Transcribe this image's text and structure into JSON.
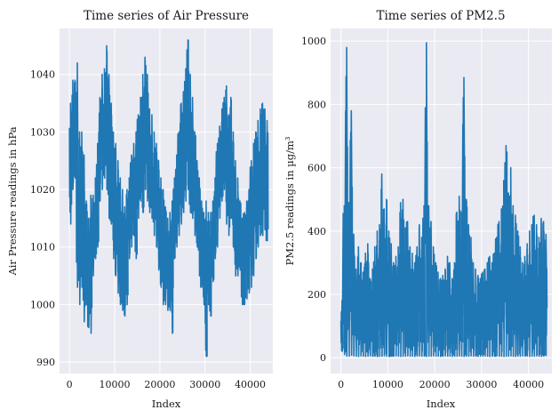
{
  "chart_data": [
    {
      "type": "line",
      "title": "Time series of Air Pressure",
      "xlabel": "Index",
      "ylabel": "Air Pressure readings in hPa",
      "xlim": [
        -2200,
        45000
      ],
      "ylim": [
        988,
        1048
      ],
      "xticks": [
        0,
        10000,
        20000,
        30000,
        40000
      ],
      "xtick_labels": [
        "0",
        "10000",
        "20000",
        "30000",
        "40000"
      ],
      "yticks": [
        990,
        1000,
        1010,
        1020,
        1030,
        1040
      ],
      "ytick_labels": [
        "990",
        "1000",
        "1010",
        "1020",
        "1030",
        "1040"
      ],
      "grid": true,
      "series": [
        {
          "color": "#1f77b4",
          "x": [
            0,
            500,
            1000,
            1500,
            2000,
            2500,
            3000,
            3500,
            4000,
            4500,
            5000,
            5500,
            6000,
            6500,
            7000,
            7500,
            8000,
            8500,
            9000,
            9500,
            10000,
            10500,
            11000,
            11500,
            12000,
            12500,
            13000,
            13500,
            14000,
            14500,
            15000,
            15500,
            16000,
            16500,
            17000,
            17500,
            18000,
            18500,
            19000,
            19500,
            20000,
            20500,
            21000,
            21500,
            22000,
            22500,
            23000,
            23500,
            24000,
            24500,
            25000,
            25500,
            26000,
            26500,
            27000,
            27500,
            28000,
            28500,
            29000,
            29500,
            30000,
            30500,
            31000,
            31500,
            32000,
            32500,
            33000,
            33500,
            34000,
            34500,
            35000,
            35500,
            36000,
            36500,
            37000,
            37500,
            38000,
            38500,
            39000,
            39500,
            40000,
            40500,
            41000,
            41500,
            42000,
            42500,
            43000,
            43500
          ],
          "y_low": [
            1014,
            1020,
            1022,
            1003,
            1000,
            1003,
            997,
            1000,
            996,
            995,
            1005,
            1008,
            1010,
            1018,
            1020,
            1022,
            1020,
            1015,
            1014,
            1008,
            1005,
            1002,
            1000,
            999,
            998,
            1000,
            1008,
            1010,
            1012,
            1008,
            1015,
            1018,
            1016,
            1020,
            1018,
            1016,
            1015,
            1012,
            1010,
            1006,
            1003,
            1000,
            1000,
            999,
            999,
            995,
            1008,
            1010,
            1012,
            1014,
            1016,
            1018,
            1020,
            1016,
            1015,
            1012,
            1010,
            1005,
            1003,
            1000,
            991,
            1000,
            998,
            1004,
            1008,
            1010,
            1015,
            1018,
            1020,
            1014,
            1012,
            1015,
            1010,
            1005,
            1005,
            1006,
            1000,
            1000,
            1001,
            1002,
            1003,
            1005,
            1008,
            1010,
            1012,
            1012,
            1013,
            1011
          ],
          "y_high": [
            1035,
            1039,
            1039,
            1042,
            1030,
            1030,
            1026,
            1018,
            1015,
            1019,
            1019,
            1022,
            1028,
            1036,
            1040,
            1041,
            1045,
            1040,
            1035,
            1030,
            1028,
            1025,
            1022,
            1020,
            1017,
            1020,
            1022,
            1026,
            1028,
            1030,
            1033,
            1036,
            1040,
            1043,
            1040,
            1034,
            1033,
            1030,
            1028,
            1025,
            1022,
            1020,
            1017,
            1015,
            1016,
            1018,
            1022,
            1026,
            1030,
            1035,
            1037,
            1041,
            1046,
            1040,
            1036,
            1030,
            1025,
            1022,
            1018,
            1016,
            1018,
            1016,
            1016,
            1018,
            1022,
            1028,
            1031,
            1034,
            1036,
            1038,
            1033,
            1036,
            1030,
            1025,
            1022,
            1018,
            1015,
            1016,
            1018,
            1020,
            1025,
            1028,
            1030,
            1032,
            1034,
            1035,
            1034,
            1032
          ]
        }
      ]
    },
    {
      "type": "line",
      "title": "Time series of PM2.5",
      "xlabel": "Index",
      "ylabel": "PM2.5 readings in µg/m³",
      "xlim": [
        -2200,
        45000
      ],
      "ylim": [
        -50,
        1040
      ],
      "xticks": [
        0,
        10000,
        20000,
        30000,
        40000
      ],
      "xtick_labels": [
        "0",
        "10000",
        "20000",
        "30000",
        "40000"
      ],
      "yticks": [
        0,
        200,
        400,
        600,
        800,
        1000
      ],
      "ytick_labels": [
        "0",
        "200",
        "400",
        "600",
        "800",
        "1000"
      ],
      "grid": true,
      "series": [
        {
          "color": "#1f77b4",
          "x": [
            0,
            500,
            1000,
            1500,
            2000,
            2500,
            3000,
            3500,
            4000,
            4500,
            5000,
            5500,
            6000,
            6500,
            7000,
            7500,
            8000,
            8500,
            9000,
            9500,
            10000,
            10500,
            11000,
            11500,
            12000,
            12500,
            13000,
            13500,
            14000,
            14500,
            15000,
            15500,
            16000,
            16500,
            17000,
            17500,
            18000,
            18500,
            19000,
            19500,
            20000,
            20500,
            21000,
            21500,
            22000,
            22500,
            23000,
            23500,
            24000,
            24500,
            25000,
            25500,
            26000,
            26500,
            27000,
            27500,
            28000,
            28500,
            29000,
            29500,
            30000,
            30500,
            31000,
            31500,
            32000,
            32500,
            33000,
            33500,
            34000,
            34500,
            35000,
            35500,
            36000,
            36500,
            37000,
            37500,
            38000,
            38500,
            39000,
            39500,
            40000,
            40500,
            41000,
            41500,
            42000,
            42500,
            43000,
            43500
          ],
          "y_low": [
            20,
            10,
            5,
            5,
            8,
            6,
            5,
            4,
            6,
            5,
            4,
            5,
            6,
            5,
            5,
            4,
            5,
            5,
            6,
            5,
            4,
            5,
            5,
            6,
            5,
            4,
            5,
            5,
            6,
            5,
            5,
            4,
            5,
            6,
            5,
            5,
            4,
            5,
            5,
            6,
            5,
            5,
            4,
            5,
            6,
            5,
            5,
            4,
            5,
            5,
            6,
            5,
            4,
            5,
            5,
            6,
            5,
            5,
            4,
            5,
            5,
            6,
            5,
            4,
            5,
            5,
            6,
            5,
            5,
            4,
            5,
            5,
            6,
            5,
            4,
            5,
            5,
            6,
            5,
            5,
            4,
            5,
            5,
            6,
            5,
            4,
            5,
            5
          ],
          "y_high": [
            180,
            480,
            980,
            490,
            780,
            390,
            280,
            350,
            300,
            270,
            330,
            360,
            250,
            280,
            350,
            400,
            420,
            580,
            470,
            500,
            400,
            360,
            300,
            320,
            350,
            490,
            500,
            410,
            430,
            350,
            330,
            300,
            350,
            420,
            380,
            480,
            995,
            480,
            430,
            350,
            300,
            270,
            250,
            260,
            280,
            320,
            300,
            250,
            300,
            460,
            510,
            460,
            885,
            500,
            420,
            380,
            300,
            280,
            260,
            250,
            270,
            280,
            300,
            320,
            300,
            330,
            380,
            430,
            470,
            560,
            670,
            520,
            600,
            480,
            450,
            400,
            350,
            300,
            320,
            360,
            400,
            420,
            450,
            420,
            380,
            440,
            430,
            390
          ]
        }
      ]
    }
  ]
}
